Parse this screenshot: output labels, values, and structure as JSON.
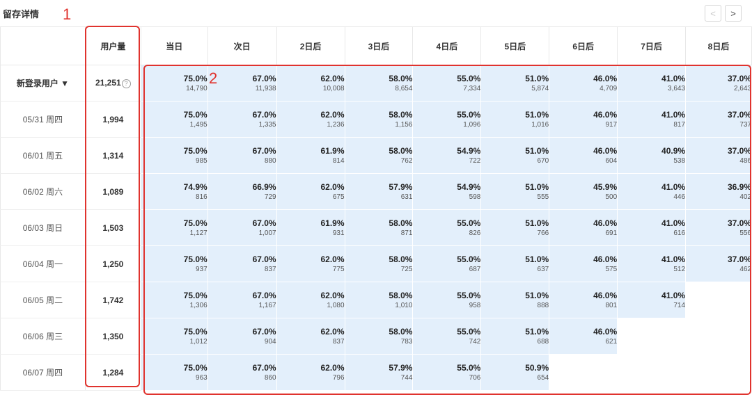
{
  "page": {
    "title": "留存详情",
    "annotation_1": "1",
    "annotation_2": "2",
    "pager": {
      "prev": "<",
      "next": ">"
    },
    "help_icon_glyph": "?"
  },
  "table": {
    "headers": [
      "",
      "用户量",
      "当日",
      "次日",
      "2日后",
      "3日后",
      "4日后",
      "5日后",
      "6日后",
      "7日后",
      "8日后"
    ],
    "rows": [
      {
        "label": "新登录用户 ▼",
        "users": "21,251",
        "total": true,
        "cells": [
          [
            "75.0%",
            "14,790"
          ],
          [
            "67.0%",
            "11,938"
          ],
          [
            "62.0%",
            "10,008"
          ],
          [
            "58.0%",
            "8,654"
          ],
          [
            "55.0%",
            "7,334"
          ],
          [
            "51.0%",
            "5,874"
          ],
          [
            "46.0%",
            "4,709"
          ],
          [
            "41.0%",
            "3,643"
          ],
          [
            "37.0%",
            "2,643"
          ]
        ]
      },
      {
        "label": "05/31 周四",
        "users": "1,994",
        "cells": [
          [
            "75.0%",
            "1,495"
          ],
          [
            "67.0%",
            "1,335"
          ],
          [
            "62.0%",
            "1,236"
          ],
          [
            "58.0%",
            "1,156"
          ],
          [
            "55.0%",
            "1,096"
          ],
          [
            "51.0%",
            "1,016"
          ],
          [
            "46.0%",
            "917"
          ],
          [
            "41.0%",
            "817"
          ],
          [
            "37.0%",
            "737"
          ]
        ]
      },
      {
        "label": "06/01 周五",
        "users": "1,314",
        "cells": [
          [
            "75.0%",
            "985"
          ],
          [
            "67.0%",
            "880"
          ],
          [
            "61.9%",
            "814"
          ],
          [
            "58.0%",
            "762"
          ],
          [
            "54.9%",
            "722"
          ],
          [
            "51.0%",
            "670"
          ],
          [
            "46.0%",
            "604"
          ],
          [
            "40.9%",
            "538"
          ],
          [
            "37.0%",
            "486"
          ]
        ]
      },
      {
        "label": "06/02 周六",
        "users": "1,089",
        "cells": [
          [
            "74.9%",
            "816"
          ],
          [
            "66.9%",
            "729"
          ],
          [
            "62.0%",
            "675"
          ],
          [
            "57.9%",
            "631"
          ],
          [
            "54.9%",
            "598"
          ],
          [
            "51.0%",
            "555"
          ],
          [
            "45.9%",
            "500"
          ],
          [
            "41.0%",
            "446"
          ],
          [
            "36.9%",
            "402"
          ]
        ]
      },
      {
        "label": "06/03 周日",
        "users": "1,503",
        "cells": [
          [
            "75.0%",
            "1,127"
          ],
          [
            "67.0%",
            "1,007"
          ],
          [
            "61.9%",
            "931"
          ],
          [
            "58.0%",
            "871"
          ],
          [
            "55.0%",
            "826"
          ],
          [
            "51.0%",
            "766"
          ],
          [
            "46.0%",
            "691"
          ],
          [
            "41.0%",
            "616"
          ],
          [
            "37.0%",
            "556"
          ]
        ]
      },
      {
        "label": "06/04 周一",
        "users": "1,250",
        "cells": [
          [
            "75.0%",
            "937"
          ],
          [
            "67.0%",
            "837"
          ],
          [
            "62.0%",
            "775"
          ],
          [
            "58.0%",
            "725"
          ],
          [
            "55.0%",
            "687"
          ],
          [
            "51.0%",
            "637"
          ],
          [
            "46.0%",
            "575"
          ],
          [
            "41.0%",
            "512"
          ],
          [
            "37.0%",
            "462"
          ]
        ]
      },
      {
        "label": "06/05 周二",
        "users": "1,742",
        "cells": [
          [
            "75.0%",
            "1,306"
          ],
          [
            "67.0%",
            "1,167"
          ],
          [
            "62.0%",
            "1,080"
          ],
          [
            "58.0%",
            "1,010"
          ],
          [
            "55.0%",
            "958"
          ],
          [
            "51.0%",
            "888"
          ],
          [
            "46.0%",
            "801"
          ],
          [
            "41.0%",
            "714"
          ]
        ]
      },
      {
        "label": "06/06 周三",
        "users": "1,350",
        "cells": [
          [
            "75.0%",
            "1,012"
          ],
          [
            "67.0%",
            "904"
          ],
          [
            "62.0%",
            "837"
          ],
          [
            "58.0%",
            "783"
          ],
          [
            "55.0%",
            "742"
          ],
          [
            "51.0%",
            "688"
          ],
          [
            "46.0%",
            "621"
          ]
        ]
      },
      {
        "label": "06/07 周四",
        "users": "1,284",
        "cells": [
          [
            "75.0%",
            "963"
          ],
          [
            "67.0%",
            "860"
          ],
          [
            "62.0%",
            "796"
          ],
          [
            "57.9%",
            "744"
          ],
          [
            "55.0%",
            "706"
          ],
          [
            "50.9%",
            "654"
          ]
        ]
      }
    ]
  },
  "colors": {
    "cell_bg": "#e3effb",
    "annotation": "#e0332e",
    "border": "#e8e8e8"
  }
}
